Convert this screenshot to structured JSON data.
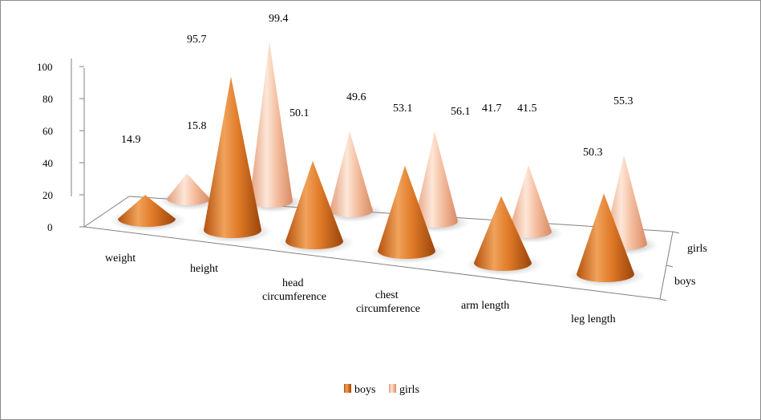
{
  "chart_data": {
    "type": "bar",
    "subtype": "3d-cone",
    "title": "",
    "categories": [
      "weight",
      "height",
      "head circumference",
      "chest circumference",
      "arm length",
      "leg length"
    ],
    "series": [
      {
        "name": "boys",
        "values": [
          14.9,
          95.7,
          50.1,
          53.1,
          41.7,
          50.3
        ],
        "color": "#e07a28"
      },
      {
        "name": "girls",
        "values": [
          15.8,
          99.4,
          49.6,
          56.1,
          41.5,
          55.3
        ],
        "color": "#f2b592"
      }
    ],
    "yticks": [
      "0",
      "20",
      "40",
      "60",
      "80",
      "100"
    ],
    "ylim": [
      0,
      100
    ],
    "depth_labels": [
      "girls",
      "boys"
    ],
    "legend": {
      "position": "bottom",
      "items": [
        "boys",
        "girls"
      ]
    }
  }
}
